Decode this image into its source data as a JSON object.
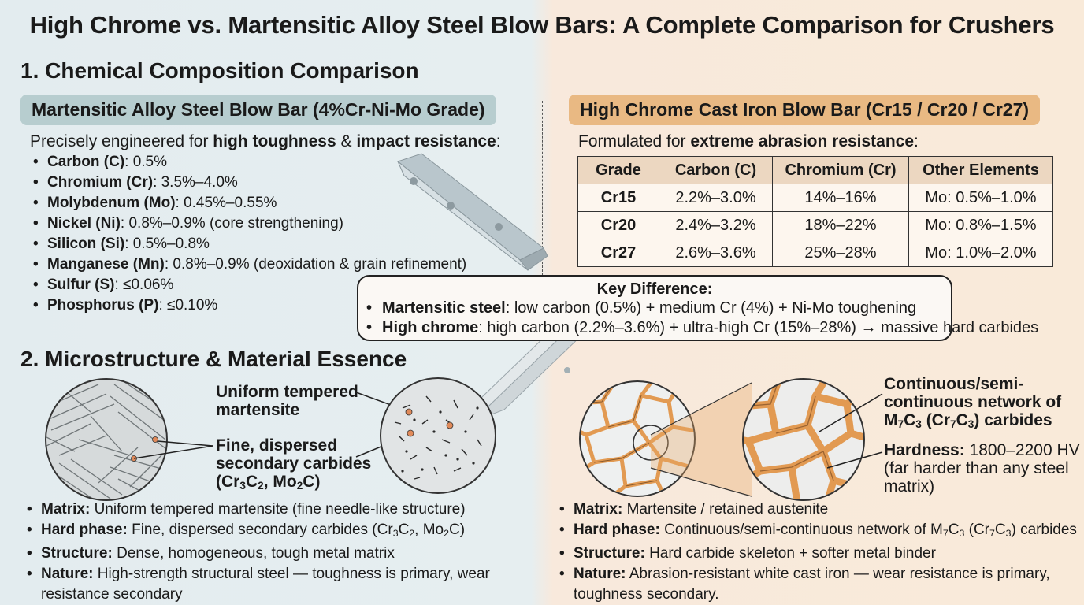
{
  "title": "High Chrome vs. Martensitic Alloy Steel Blow Bars: A Complete Comparison for Crushers",
  "section1": {
    "heading": "1. Chemical Composition Comparison",
    "martensitic": {
      "pill": "Martensitic Alloy Steel Blow Bar (4%Cr-Ni-Mo Grade)",
      "intro_pre": "Precisely engineered for ",
      "intro_b1": "high toughness",
      "intro_mid": " & ",
      "intro_b2": "impact resistance",
      "intro_post": ":",
      "items": [
        {
          "label": "Carbon (C)",
          "value": ": 0.5%"
        },
        {
          "label": "Chromium (Cr)",
          "value": ": 3.5%–4.0%"
        },
        {
          "label": "Molybdenum (Mo)",
          "value": ": 0.45%–0.55%"
        },
        {
          "label": "Nickel (Ni)",
          "value": ": 0.8%–0.9% (core strengthening)"
        },
        {
          "label": "Silicon (Si)",
          "value": ": 0.5%–0.8%"
        },
        {
          "label": "Manganese (Mn)",
          "value": ": 0.8%–0.9% (deoxidation & grain refinement)"
        },
        {
          "label": "Sulfur (S)",
          "value": ": ≤0.06%"
        },
        {
          "label": "Phosphorus (P)",
          "value": ": ≤0.10%"
        }
      ]
    },
    "highchrome": {
      "pill": "High Chrome Cast Iron Blow Bar (Cr15 / Cr20 / Cr27)",
      "intro_pre": "Formulated for ",
      "intro_b": "extreme abrasion resistance",
      "intro_post": ":",
      "table": {
        "headers": [
          "Grade",
          "Carbon (C)",
          "Chromium (Cr)",
          "Other Elements"
        ],
        "rows": [
          [
            "Cr15",
            "2.2%–3.0%",
            "14%–16%",
            "Mo: 0.5%–1.0%"
          ],
          [
            "Cr20",
            "2.4%–3.2%",
            "18%–22%",
            "Mo: 0.8%–1.5%"
          ],
          [
            "Cr27",
            "2.6%–3.6%",
            "25%–28%",
            "Mo: 1.0%–2.0%"
          ]
        ]
      }
    },
    "key_difference": {
      "title": "Key Difference:",
      "items": [
        {
          "label": "Martensitic steel",
          "value": ": low carbon (0.5%) + medium Cr (4%) + Ni-Mo toughening"
        },
        {
          "label": "High chrome",
          "value": ": high carbon (2.2%–3.6%) + ultra-high Cr (15%–28%) → massive hard carbides"
        }
      ]
    }
  },
  "section2": {
    "heading": "2. Microstructure & Material Essence",
    "left_callouts": {
      "c1_l1": "Uniform tempered",
      "c1_l2": "martensite",
      "c2_l1": "Fine, dispersed",
      "c2_l2": "secondary carbides",
      "c2_l3_a": "(Cr",
      "c2_l3_s1": "3",
      "c2_l3_b": "C",
      "c2_l3_s2": "2",
      "c2_l3_c": ", Mo",
      "c2_l3_s3": "2",
      "c2_l3_d": "C)"
    },
    "right_callouts": {
      "c1_l1": "Continuous/semi-",
      "c1_l2": "continuous network of",
      "c1_l3_a": "M",
      "c1_l3_s1": "7",
      "c1_l3_b": "C",
      "c1_l3_s2": "3",
      "c1_l3_c": " (Cr",
      "c1_l3_s3": "7",
      "c1_l3_d": "C",
      "c1_l3_s4": "3",
      "c1_l3_e": ") carbides",
      "c2_label": "Hardness:",
      "c2_value": " 1800–2200 HV",
      "c2_l2": "(far harder than any steel",
      "c2_l3": "matrix)"
    },
    "left_list": [
      {
        "label": "Matrix:",
        "value": " Uniform tempered martensite (fine needle-like structure)"
      },
      {
        "label": "Hard phase:",
        "value": " Fine, dispersed secondary carbides (Cr",
        "s1": "3",
        "v2": "C",
        "s2": "2",
        "v3": ", Mo",
        "s3": "2",
        "v4": "C)"
      },
      {
        "label": "Structure:",
        "value": " Dense, homogeneous, tough metal matrix"
      },
      {
        "label": "Nature:",
        "value": " High-strength structural steel — toughness is primary, wear",
        "cont": "resistance secondary"
      }
    ],
    "right_list": [
      {
        "label": "Matrix:",
        "value": " Martensite / retained austenite"
      },
      {
        "label": "Hard phase:",
        "value": " Continuous/semi-continuous network of M",
        "s1": "7",
        "v2": "C",
        "s2": "3",
        "v3": " (Cr",
        "s3": "7",
        "v4": "C",
        "s4": "3",
        "v5": ") carbides"
      },
      {
        "label": "Structure:",
        "value": " Hard carbide skeleton + softer metal binder"
      },
      {
        "label": "Nature:",
        "value": " Abrasion-resistant white cast iron — wear resistance is primary,",
        "cont": "toughness secondary."
      }
    ]
  },
  "colors": {
    "teal_pill": "#b7cdcf",
    "orange_pill": "#e9b983",
    "carbide_network": "#e29a52",
    "carbide_dot": "#e08a5a"
  }
}
